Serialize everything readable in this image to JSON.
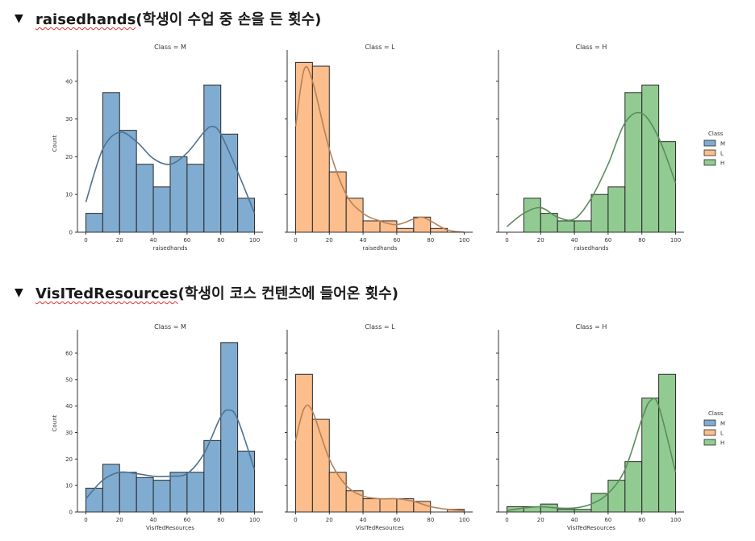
{
  "sections": [
    {
      "arrow": "▼",
      "keyword": "raisedhands",
      "desc": "(학생이 수업 중 손을 든 횟수)",
      "chart_data": {
        "type": "bar",
        "subtype": "histogram-facet",
        "ylabel": "Count",
        "xlabel": "raisedhands",
        "ylim": [
          0,
          47
        ],
        "yticks": [
          0,
          10,
          20,
          30,
          40
        ],
        "xticks": [
          0,
          20,
          40,
          60,
          80,
          100
        ],
        "legend": {
          "title": "Class",
          "entries": [
            "M",
            "L",
            "H"
          ],
          "placement": "right"
        },
        "panels": [
          {
            "title": "Class = M",
            "class": "M",
            "color": "#6b9ec9",
            "bin_edges": [
              0,
              10,
              20,
              30,
              40,
              50,
              60,
              70,
              80,
              90,
              100
            ],
            "counts": [
              5,
              37,
              27,
              18,
              12,
              20,
              18,
              39,
              26,
              9
            ],
            "kde_x": [
              0,
              10,
              20,
              30,
              40,
              50,
              60,
              70,
              75,
              80,
              90,
              100
            ],
            "kde_y": [
              8,
              22,
              26.5,
              24,
              19.5,
              18,
              21,
              26.5,
              28,
              26,
              16,
              5
            ]
          },
          {
            "title": "Class = L",
            "class": "L",
            "color": "#fdb379",
            "bin_edges": [
              0,
              10,
              20,
              30,
              40,
              50,
              60,
              70,
              80,
              90,
              100
            ],
            "counts": [
              45,
              44,
              16,
              9,
              3,
              3,
              1,
              4,
              1,
              0
            ],
            "kde_x": [
              0,
              5,
              10,
              20,
              30,
              40,
              50,
              60,
              70,
              75,
              80,
              90,
              100
            ],
            "kde_y": [
              28,
              43,
              40,
              22,
              10,
              5,
              3,
              2,
              3.5,
              4,
              3,
              0.6,
              0
            ]
          },
          {
            "title": "Class = H",
            "class": "H",
            "color": "#7fc27f",
            "bin_edges": [
              10,
              20,
              30,
              40,
              50,
              60,
              70,
              80,
              90,
              100
            ],
            "counts": [
              9,
              5,
              3,
              3,
              10,
              12,
              37,
              39,
              24
            ],
            "kde_x": [
              0,
              10,
              20,
              30,
              40,
              50,
              60,
              70,
              80,
              90,
              100
            ],
            "kde_y": [
              1.5,
              5,
              6.5,
              4,
              3.5,
              9,
              18,
              29,
              31.5,
              25,
              13
            ]
          }
        ]
      }
    },
    {
      "arrow": "▼",
      "keyword": "VisITedResources",
      "desc": "(학생이 코스 컨텐츠에 들어온 횟수)",
      "chart_data": {
        "type": "bar",
        "subtype": "histogram-facet",
        "ylabel": "Count",
        "xlabel": "VisITedResources",
        "ylim": [
          0,
          67
        ],
        "yticks": [
          0,
          10,
          20,
          30,
          40,
          50,
          60
        ],
        "xticks": [
          0,
          20,
          40,
          60,
          80,
          100
        ],
        "legend": {
          "title": "Class",
          "entries": [
            "M",
            "L",
            "H"
          ],
          "placement": "right"
        },
        "panels": [
          {
            "title": "Class = M",
            "class": "M",
            "color": "#6b9ec9",
            "bin_edges": [
              0,
              10,
              20,
              30,
              40,
              50,
              60,
              70,
              80,
              90,
              100
            ],
            "counts": [
              9,
              18,
              15,
              13,
              12,
              15,
              15,
              27,
              64,
              23
            ],
            "kde_x": [
              0,
              10,
              20,
              30,
              40,
              50,
              60,
              70,
              80,
              85,
              90,
              100
            ],
            "kde_y": [
              5,
              12,
              15,
              14.5,
              13.5,
              13.5,
              14.5,
              22,
              36,
              38.5,
              35,
              16
            ]
          },
          {
            "title": "Class = L",
            "class": "L",
            "color": "#fdb379",
            "bin_edges": [
              0,
              10,
              20,
              30,
              40,
              50,
              60,
              70,
              80,
              90,
              100
            ],
            "counts": [
              52,
              35,
              15,
              8,
              5,
              5,
              5,
              4,
              0,
              1
            ],
            "kde_x": [
              0,
              5,
              10,
              20,
              30,
              40,
              50,
              60,
              70,
              80,
              90,
              100
            ],
            "kde_y": [
              27,
              39,
              38,
              20,
              10,
              6,
              5,
              5,
              4,
              2,
              1,
              0.5
            ]
          },
          {
            "title": "Class = H",
            "class": "H",
            "color": "#7fc27f",
            "bin_edges": [
              0,
              10,
              20,
              30,
              40,
              50,
              60,
              70,
              80,
              90,
              100
            ],
            "counts": [
              2,
              2,
              3,
              1,
              1,
              7,
              12,
              19,
              43,
              52
            ],
            "kde_x": [
              0,
              10,
              20,
              30,
              40,
              50,
              60,
              70,
              80,
              85,
              90,
              100
            ],
            "kde_y": [
              0.5,
              1.5,
              2,
              1.5,
              1.5,
              3,
              7,
              16,
              35,
              42,
              40,
              15
            ]
          }
        ]
      }
    }
  ]
}
